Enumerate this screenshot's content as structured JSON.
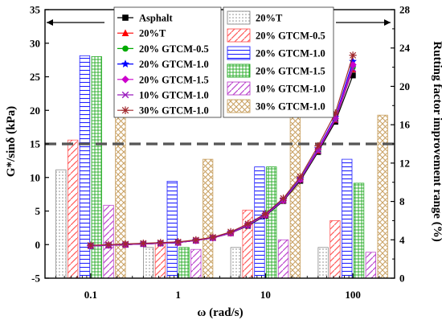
{
  "chart_data": {
    "type": "bar+line",
    "x_axis": {
      "label": "ω (rad/s)",
      "scale": "log",
      "range": [
        0.03,
        300
      ],
      "ticks": [
        0.1,
        1,
        10,
        100
      ],
      "tick_labels": [
        "0.1",
        "1",
        "10",
        "100"
      ]
    },
    "y_left": {
      "label": "G*/sinδ (kPa)",
      "range": [
        -5,
        35
      ],
      "ticks": [
        -5,
        0,
        5,
        10,
        15,
        20,
        25,
        30,
        35
      ],
      "tick_labels": [
        "-5",
        "0",
        "5",
        "10",
        "15",
        "20",
        "25",
        "30",
        "35"
      ]
    },
    "y_right": {
      "label": "Rutting factor improvement range (%)",
      "range": [
        0,
        28
      ],
      "ticks": [
        0,
        4,
        8,
        12,
        16,
        20,
        24,
        28
      ],
      "tick_labels": [
        "0",
        "4",
        "8",
        "12",
        "16",
        "20",
        "24",
        "28"
      ]
    },
    "threshold_line": {
      "y_left": 15,
      "style": "dashed"
    },
    "line_x": [
      0.1,
      0.16,
      0.25,
      0.4,
      0.63,
      1.0,
      1.6,
      2.5,
      4.0,
      6.3,
      10,
      16,
      25,
      40,
      63,
      100
    ],
    "line_series": [
      {
        "name": "Asphalt",
        "color": "#000000",
        "marker": "square",
        "values": [
          -0.2,
          -0.1,
          0.0,
          0.1,
          0.2,
          0.3,
          0.6,
          1.0,
          1.7,
          2.8,
          4.3,
          6.5,
          9.5,
          13.8,
          18.3,
          25.2
        ]
      },
      {
        "name": "20%T",
        "color": "#ff0000",
        "marker": "triangle",
        "values": [
          -0.2,
          -0.1,
          0.0,
          0.1,
          0.2,
          0.3,
          0.6,
          1.0,
          1.7,
          2.9,
          4.4,
          6.6,
          9.7,
          14.0,
          18.6,
          26.1
        ]
      },
      {
        "name": "20% GTCM-0.5",
        "color": "#00aa00",
        "marker": "circle",
        "values": [
          -0.2,
          -0.1,
          0.0,
          0.1,
          0.2,
          0.3,
          0.6,
          1.0,
          1.7,
          2.9,
          4.4,
          6.6,
          9.7,
          14.1,
          18.7,
          26.4
        ]
      },
      {
        "name": "20% GTCM-1.0",
        "color": "#0000ff",
        "marker": "star",
        "values": [
          -0.2,
          -0.1,
          0.0,
          0.1,
          0.2,
          0.3,
          0.6,
          1.0,
          1.8,
          2.9,
          4.5,
          6.7,
          9.8,
          14.3,
          19.0,
          27.3
        ]
      },
      {
        "name": "20% GTCM-1.5",
        "color": "#cc00cc",
        "marker": "diamond",
        "values": [
          -0.2,
          -0.1,
          0.0,
          0.1,
          0.2,
          0.3,
          0.6,
          1.0,
          1.7,
          2.9,
          4.4,
          6.6,
          9.7,
          14.2,
          18.8,
          26.8
        ]
      },
      {
        "name": "10% GTCM-1.0",
        "color": "#9a1cbe",
        "marker": "x",
        "values": [
          -0.2,
          -0.1,
          0.0,
          0.1,
          0.2,
          0.3,
          0.6,
          1.0,
          1.7,
          2.9,
          4.4,
          6.6,
          9.7,
          14.0,
          18.6,
          26.2
        ]
      },
      {
        "name": "30% GTCM-1.0",
        "color": "#a0282d",
        "marker": "asterisk",
        "values": [
          -0.1,
          0.0,
          0.1,
          0.2,
          0.3,
          0.4,
          0.7,
          1.1,
          1.9,
          3.1,
          4.6,
          6.9,
          10.1,
          14.7,
          19.6,
          28.2
        ]
      }
    ],
    "bar_groups": [
      0.1,
      1,
      10,
      100
    ],
    "bar_series": [
      {
        "name": "20%T",
        "color": "#8a8a8a",
        "pattern": "dots",
        "values": [
          11.3,
          3.2,
          3.2,
          3.2
        ]
      },
      {
        "name": "20% GTCM-0.5",
        "color": "#ff5a5a",
        "pattern": "diag",
        "values": [
          14.4,
          3.6,
          7.1,
          6.0
        ]
      },
      {
        "name": "20% GTCM-1.0",
        "color": "#2020ff",
        "pattern": "hlines",
        "values": [
          23.2,
          10.1,
          11.6,
          12.4
        ]
      },
      {
        "name": "20% GTCM-1.5",
        "color": "#22aa22",
        "pattern": "grid",
        "values": [
          23.1,
          3.2,
          11.6,
          9.9
        ]
      },
      {
        "name": "10% GTCM-1.0",
        "color": "#bb44cc",
        "pattern": "diag",
        "values": [
          7.6,
          3.0,
          4.0,
          2.7
        ]
      },
      {
        "name": "30% GTCM-1.0",
        "color": "#c8a060",
        "pattern": "cross",
        "values": [
          27.0,
          12.4,
          17.4,
          17.0
        ]
      }
    ]
  }
}
